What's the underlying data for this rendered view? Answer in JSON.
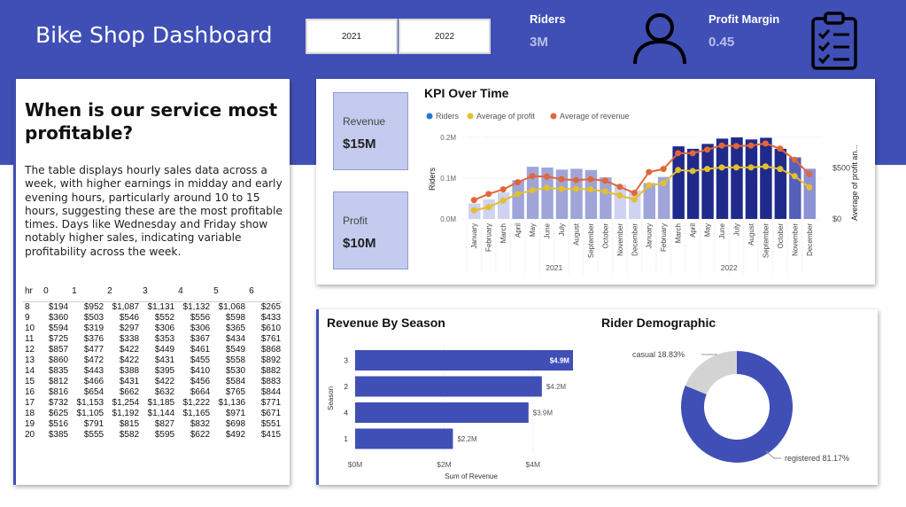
{
  "header": {
    "title": "Bike Shop Dashboard",
    "year_buttons": [
      "2021",
      "2022"
    ],
    "riders_label": "Riders",
    "riders_value": "3M",
    "profit_margin_label": "Profit Margin",
    "profit_margin_value": "0.45",
    "banner_color": "#3f4fb5",
    "user_icon": "user-icon",
    "clipboard_icon": "clipboard-checklist-icon"
  },
  "insight": {
    "title": "When is our service most profitable?",
    "description": "The table displays hourly sales data across a week, with higher earnings in midday and early evening hours, particularly around 10 to 15 hours, suggesting these are the most profitable times. Days like Wednesday and Friday show notably higher sales, indicating variable profitability across the week.",
    "table": {
      "headers": [
        "hr",
        "0",
        "1",
        "2",
        "3",
        "4",
        "5",
        "6"
      ],
      "rows": [
        [
          "8",
          "$194",
          "$952",
          "$1,087",
          "$1,131",
          "$1,132",
          "$1,068",
          "$265"
        ],
        [
          "9",
          "$360",
          "$503",
          "$546",
          "$552",
          "$556",
          "$598",
          "$433"
        ],
        [
          "10",
          "$594",
          "$319",
          "$297",
          "$306",
          "$306",
          "$365",
          "$610"
        ],
        [
          "11",
          "$725",
          "$376",
          "$338",
          "$353",
          "$367",
          "$434",
          "$761"
        ],
        [
          "12",
          "$857",
          "$477",
          "$422",
          "$449",
          "$461",
          "$549",
          "$868"
        ],
        [
          "13",
          "$860",
          "$472",
          "$422",
          "$431",
          "$455",
          "$558",
          "$892"
        ],
        [
          "14",
          "$835",
          "$443",
          "$388",
          "$395",
          "$410",
          "$530",
          "$882"
        ],
        [
          "15",
          "$812",
          "$466",
          "$431",
          "$422",
          "$456",
          "$584",
          "$883"
        ],
        [
          "16",
          "$816",
          "$654",
          "$662",
          "$632",
          "$664",
          "$765",
          "$844"
        ],
        [
          "17",
          "$732",
          "$1,153",
          "$1,254",
          "$1,185",
          "$1,222",
          "$1,136",
          "$771"
        ],
        [
          "18",
          "$625",
          "$1,105",
          "$1,192",
          "$1,144",
          "$1,165",
          "$971",
          "$671"
        ],
        [
          "19",
          "$516",
          "$791",
          "$815",
          "$827",
          "$832",
          "$698",
          "$551"
        ],
        [
          "20",
          "$385",
          "$555",
          "$582",
          "$595",
          "$622",
          "$492",
          "$415"
        ]
      ]
    }
  },
  "kpi_tiles": {
    "revenue_label": "Revenue",
    "revenue_value": "$15M",
    "profit_label": "Profit",
    "profit_value": "$10M"
  },
  "kpi_chart_title": "KPI Over Time",
  "season_chart_title": "Revenue By Season",
  "demographic_chart_title": "Rider Demographic",
  "chart_data": [
    {
      "type": "bar",
      "title": "KPI Over Time",
      "categories": [
        "January",
        "February",
        "March",
        "April",
        "May",
        "June",
        "July",
        "August",
        "September",
        "October",
        "November",
        "December",
        "January",
        "February",
        "March",
        "April",
        "May",
        "June",
        "July",
        "August",
        "September",
        "October",
        "November",
        "December"
      ],
      "groups": [
        {
          "label": "2021",
          "count": 12
        },
        {
          "label": "2022",
          "count": 12
        }
      ],
      "ylabel": "Riders",
      "y2label": "Average of profit an...",
      "ylim": [
        0,
        200000
      ],
      "y2lim": [
        0,
        800
      ],
      "yticks": [
        "0.0M",
        "0.1M",
        "0.2M"
      ],
      "y2ticks": [
        "$0",
        "$500"
      ],
      "legend": [
        "Riders",
        "Average of profit",
        "Average of revenue"
      ],
      "legend_position": "top-left",
      "series": [
        {
          "name": "Riders",
          "kind": "bar",
          "color": "#1f78d1",
          "values": [
            38000,
            48000,
            65000,
            95000,
            128000,
            126000,
            121000,
            123000,
            120000,
            102000,
            84000,
            69000,
            88000,
            103000,
            178000,
            172000,
            184000,
            197000,
            200000,
            195000,
            199000,
            172000,
            151000,
            123000
          ]
        },
        {
          "name": "Average of profit",
          "kind": "line",
          "color": "#e3c02d",
          "values": [
            85,
            115,
            180,
            245,
            280,
            305,
            295,
            295,
            290,
            270,
            230,
            190,
            330,
            350,
            480,
            470,
            490,
            505,
            505,
            505,
            515,
            490,
            420,
            310
          ]
        },
        {
          "name": "Average of revenue",
          "kind": "line",
          "color": "#e2663a",
          "values": [
            185,
            245,
            290,
            360,
            420,
            415,
            390,
            380,
            390,
            375,
            315,
            255,
            460,
            490,
            645,
            645,
            680,
            720,
            715,
            720,
            740,
            690,
            580,
            440
          ]
        }
      ],
      "bar_colors": {
        "light": "#cfd2f1",
        "mid": "#9fa5d9",
        "dark": "#1f2a8a"
      }
    },
    {
      "type": "bar",
      "title": "Revenue By Season",
      "orientation": "horizontal",
      "categories": [
        "3",
        "2",
        "4",
        "1"
      ],
      "values": [
        4.9,
        4.2,
        3.9,
        2.2
      ],
      "data_labels": [
        "$4.9M",
        "$4.2M",
        "$3.9M",
        "$2.2M"
      ],
      "xlabel": "Sum of Revenue",
      "ylabel": "Season",
      "xlim": [
        0,
        5
      ],
      "xticks": [
        "$0M",
        "$2M",
        "$4M"
      ],
      "color": "#3f4fb5"
    },
    {
      "type": "pie",
      "title": "Rider Demographic",
      "donut": true,
      "labels": [
        "casual",
        "registered"
      ],
      "values": [
        18.83,
        81.17
      ],
      "data_labels": [
        "casual 18.83%",
        "registered 81.17%"
      ],
      "colors": [
        "#d3d3d3",
        "#3f4fb5"
      ]
    }
  ]
}
